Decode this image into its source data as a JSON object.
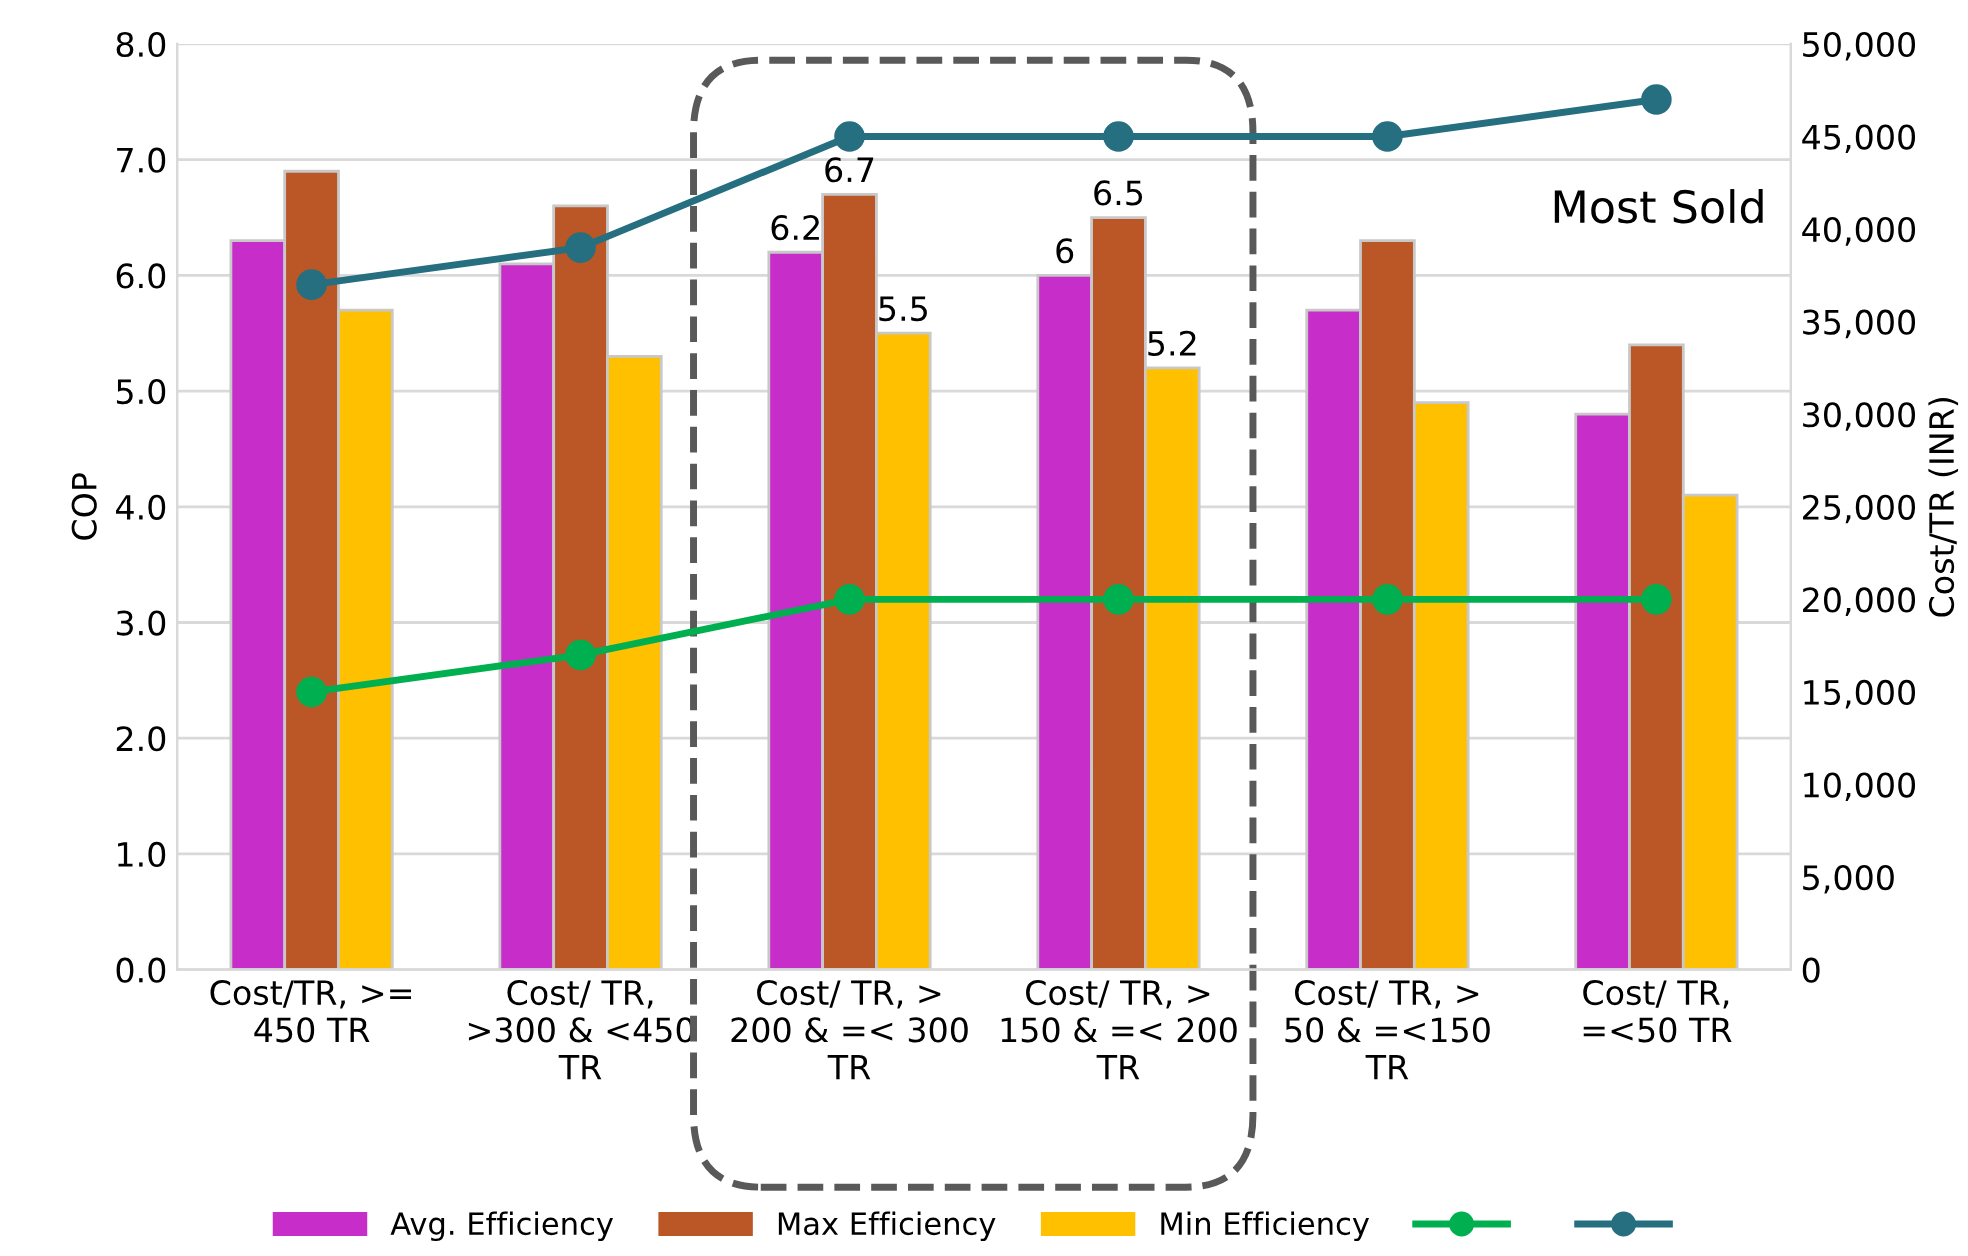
{
  "chart_data": {
    "type": "bar",
    "categories": [
      "Cost/TR, >=\n450 TR",
      "Cost/ TR,\n>300 & <450\nTR",
      "Cost/ TR, >\n200 & =< 300\nTR",
      "Cost/ TR, >\n150 & =< 200\nTR",
      "Cost/ TR, >\n50 & =<150\nTR",
      "Cost/ TR,\n=<50 TR"
    ],
    "series": [
      {
        "name": "Avg. Efficiency",
        "color": "#c72ec9",
        "values": [
          6.3,
          6.1,
          6.2,
          6.0,
          5.7,
          4.8
        ],
        "value_labels": [
          null,
          null,
          "6.2",
          "6",
          null,
          null
        ]
      },
      {
        "name": "Max Efficiency",
        "color": "#bb5626",
        "values": [
          6.9,
          6.6,
          6.7,
          6.5,
          6.3,
          5.4
        ],
        "value_labels": [
          null,
          null,
          "6.7",
          "6.5",
          null,
          null
        ]
      },
      {
        "name": "Min Efficiency",
        "color": "#ffc000",
        "values": [
          5.7,
          5.3,
          5.5,
          5.2,
          4.9,
          4.1
        ],
        "value_labels": [
          null,
          null,
          "5.5",
          "5.2",
          null,
          null
        ]
      },
      {
        "type": "line",
        "axis": "y2",
        "color": "#00b050",
        "values": [
          15000,
          17000,
          20000,
          20000,
          20000,
          20000
        ]
      },
      {
        "type": "line",
        "axis": "y2",
        "color": "#256f80",
        "values": [
          37000,
          39000,
          45000,
          45000,
          45000,
          47000
        ]
      }
    ],
    "ylabel": "COP",
    "y2label": "Cost/TR (INR)",
    "ylim": [
      0,
      8
    ],
    "yticks": [
      {
        "value": 0,
        "label": "0.0"
      },
      {
        "value": 1,
        "label": "1.0"
      },
      {
        "value": 2,
        "label": "2.0"
      },
      {
        "value": 3,
        "label": "3.0"
      },
      {
        "value": 4,
        "label": "4.0"
      },
      {
        "value": 5,
        "label": "5.0"
      },
      {
        "value": 6,
        "label": "6.0"
      },
      {
        "value": 7,
        "label": "7.0"
      },
      {
        "value": 8,
        "label": "8.0"
      }
    ],
    "y2lim": [
      0,
      50000
    ],
    "y2ticks": [
      0,
      {
        "value": 5000,
        "label": "5,000"
      },
      {
        "value": 10000,
        "label": "10,000"
      },
      {
        "value": 15000,
        "label": "15,000"
      },
      {
        "value": 20000,
        "label": "20,000"
      },
      {
        "value": 25000,
        "label": "25,000"
      },
      {
        "value": 30000,
        "label": "30,000"
      },
      {
        "value": 35000,
        "label": "35,000"
      },
      {
        "value": 40000,
        "label": "40,000"
      },
      {
        "value": 45000,
        "label": "45,000"
      },
      {
        "value": 50000,
        "label": "50,000"
      }
    ],
    "annotations": [
      "Most Sold"
    ],
    "grid": "y",
    "legend": "bottom",
    "marker": "circle",
    "line_style": "solid"
  }
}
